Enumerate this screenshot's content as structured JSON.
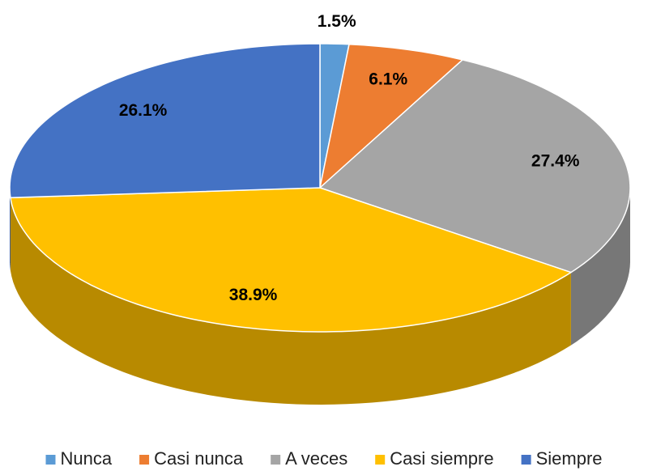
{
  "chart_data": {
    "type": "pie",
    "categories": [
      "Nunca",
      "Casi nunca",
      "A veces",
      "Casi siempre",
      "Siempre"
    ],
    "values": [
      1.5,
      6.1,
      27.4,
      38.9,
      26.1
    ],
    "value_labels": [
      "1.5%",
      "6.1%",
      "27.4%",
      "38.9%",
      "26.1%"
    ],
    "colors": [
      "#5b9bd5",
      "#ed7d31",
      "#a5a5a5",
      "#ffc000",
      "#4472c4"
    ],
    "legend": "bottom"
  }
}
